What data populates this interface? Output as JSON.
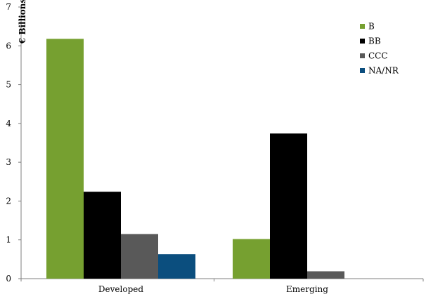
{
  "chart_data": {
    "type": "bar",
    "title": "",
    "xlabel": "",
    "ylabel": "€ Billions",
    "ylim": [
      0,
      7
    ],
    "yticks": [
      0,
      1,
      2,
      3,
      4,
      5,
      6,
      7
    ],
    "grid": false,
    "legend_position": "top-right",
    "categories": [
      "Developed",
      "Emerging"
    ],
    "series": [
      {
        "name": "B",
        "color": "#76a030",
        "values": [
          6.18,
          1.02
        ]
      },
      {
        "name": "BB",
        "color": "#000000",
        "values": [
          2.24,
          3.74
        ]
      },
      {
        "name": "CCC",
        "color": "#595959",
        "values": [
          1.15,
          0.19
        ]
      },
      {
        "name": "NA/NR",
        "color": "#0b4e7e",
        "values": [
          0.63,
          0
        ]
      }
    ]
  }
}
